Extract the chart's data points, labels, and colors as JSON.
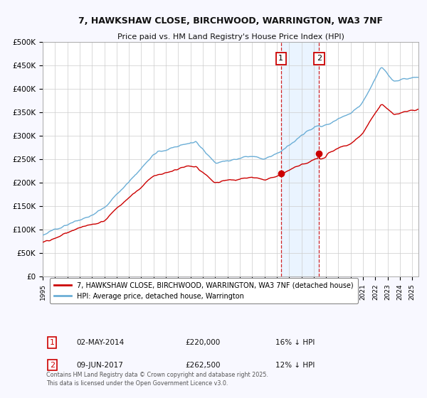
{
  "title_line1": "7, HAWKSHAW CLOSE, BIRCHWOOD, WARRINGTON, WA3 7NF",
  "title_line2": "Price paid vs. HM Land Registry's House Price Index (HPI)",
  "ylim": [
    0,
    500000
  ],
  "yticks": [
    0,
    50000,
    100000,
    150000,
    200000,
    250000,
    300000,
    350000,
    400000,
    450000,
    500000
  ],
  "ytick_labels": [
    "£0",
    "£50K",
    "£100K",
    "£150K",
    "£200K",
    "£250K",
    "£300K",
    "£350K",
    "£400K",
    "£450K",
    "£500K"
  ],
  "xtick_years": [
    1995,
    1996,
    1997,
    1998,
    1999,
    2000,
    2001,
    2002,
    2003,
    2004,
    2005,
    2006,
    2007,
    2008,
    2009,
    2010,
    2011,
    2012,
    2013,
    2014,
    2015,
    2016,
    2017,
    2018,
    2019,
    2020,
    2021,
    2022,
    2023,
    2024,
    2025
  ],
  "hpi_color": "#6baed6",
  "price_color": "#cc0000",
  "marker_color": "#cc0000",
  "vline_color": "#cc0000",
  "shade_color": "#ddeeff",
  "purchase1_year": 2014.33,
  "purchase1_price": 220000,
  "purchase2_year": 2017.44,
  "purchase2_price": 262500,
  "legend_label1": "7, HAWKSHAW CLOSE, BIRCHWOOD, WARRINGTON, WA3 7NF (detached house)",
  "legend_label2": "HPI: Average price, detached house, Warrington",
  "annotation1_label": "1",
  "annotation2_label": "2",
  "purchase1_date_str": "02-MAY-2014",
  "purchase1_price_str": "£220,000",
  "purchase1_hpi_str": "16% ↓ HPI",
  "purchase2_date_str": "09-JUN-2017",
  "purchase2_price_str": "£262,500",
  "purchase2_hpi_str": "12% ↓ HPI",
  "footer": "Contains HM Land Registry data © Crown copyright and database right 2025.\nThis data is licensed under the Open Government Licence v3.0.",
  "background_color": "#f8f8ff",
  "plot_bg_color": "#ffffff",
  "grid_color": "#cccccc"
}
